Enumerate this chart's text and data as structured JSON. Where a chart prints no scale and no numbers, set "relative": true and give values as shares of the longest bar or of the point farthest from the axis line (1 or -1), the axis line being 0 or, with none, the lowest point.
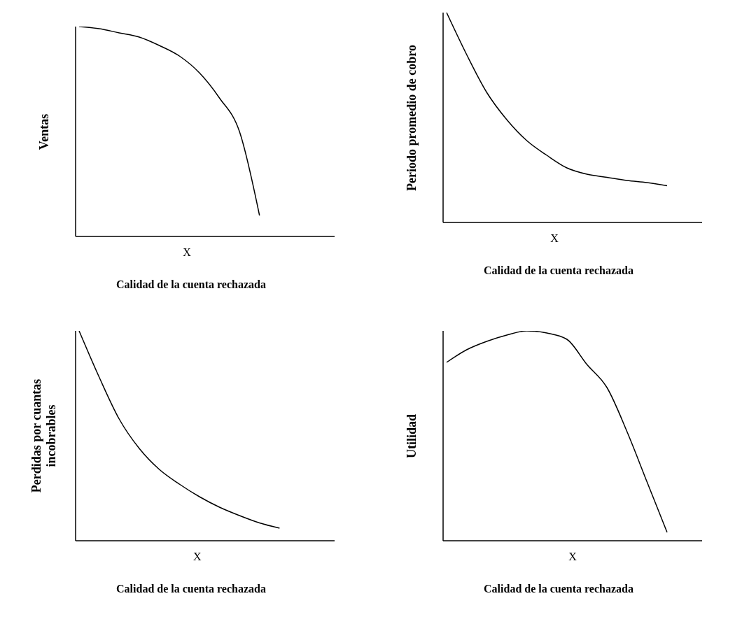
{
  "chart_data": [
    {
      "type": "line",
      "relative": true,
      "ylabel": "Ventas",
      "xlabel": "Calidad de la cuenta rechazada",
      "annotations": [
        "X"
      ],
      "categories": [
        null,
        null,
        null,
        null,
        null,
        null,
        null,
        null,
        null,
        null,
        null,
        null
      ],
      "series": [
        {
          "color": "#000000",
          "values": [
            1,
            0.99,
            0.97,
            0.95,
            0.91,
            0.86,
            0.78,
            0.66,
            0.5,
            0.1,
            null,
            null
          ]
        }
      ],
      "marker": "none",
      "line_style": "solid"
    },
    {
      "type": "line",
      "relative": true,
      "ylabel": "Periodo promedio de cobro",
      "xlabel": "Calidad de la cuenta rechazada",
      "annotations": [
        "X"
      ],
      "categories": [
        null,
        null,
        null,
        null,
        null,
        null,
        null,
        null,
        null,
        null,
        null,
        null
      ],
      "series": [
        {
          "color": "#000000",
          "values": [
            1,
            0.8,
            0.62,
            0.49,
            0.39,
            0.32,
            0.26,
            0.23,
            0.215,
            0.2,
            0.19,
            0.175
          ]
        }
      ],
      "marker": "none",
      "line_style": "solid"
    },
    {
      "type": "line",
      "relative": true,
      "ylabel": "Perdidas por cuantas incobrables",
      "xlabel": "Calidad de la cuenta rechazada",
      "annotations": [
        "X"
      ],
      "categories": [
        null,
        null,
        null,
        null,
        null,
        null,
        null,
        null,
        null,
        null,
        null,
        null
      ],
      "series": [
        {
          "color": "#000000",
          "values": [
            1,
            0.78,
            0.58,
            0.44,
            0.34,
            0.27,
            0.21,
            0.16,
            0.12,
            0.085,
            0.06,
            null
          ]
        }
      ],
      "marker": "none",
      "line_style": "solid"
    },
    {
      "type": "line",
      "relative": true,
      "ylabel": "Utilidad",
      "xlabel": "Calidad de la cuenta rechazada",
      "annotations": [
        "X"
      ],
      "categories": [
        null,
        null,
        null,
        null,
        null,
        null,
        null,
        null,
        null,
        null,
        null,
        null
      ],
      "series": [
        {
          "color": "#000000",
          "values": [
            0.85,
            0.91,
            0.95,
            0.98,
            1,
            0.99,
            0.96,
            0.84,
            0.73,
            0.52,
            0.28,
            0.04
          ]
        }
      ],
      "marker": "none",
      "line_style": "solid"
    }
  ]
}
